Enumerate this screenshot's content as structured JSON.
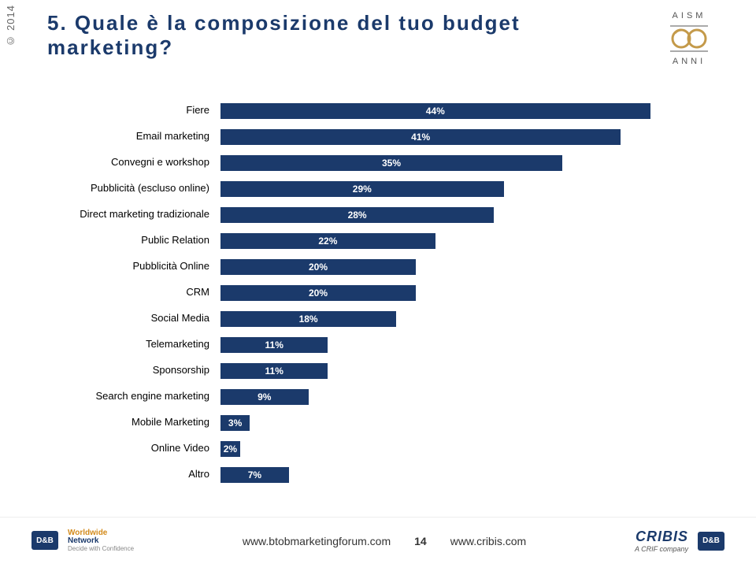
{
  "year_tab": "© 2014",
  "title": "5. Quale è la composizione del tuo budget marketing?",
  "title_color": "#1b3a6b",
  "logo": {
    "top_text": "AISM",
    "bottom_text": "ANNI",
    "circle_color": "#c49a4a",
    "line_color": "#555"
  },
  "chart": {
    "type": "bar-horizontal",
    "max": 50,
    "bar_color": "#1b3a6b",
    "value_text_color": "#ffffff",
    "label_color": "#000000",
    "label_fontsize": 13,
    "value_fontsize": 12,
    "background_color": "#ffffff",
    "rows": [
      {
        "label": "Fiere",
        "value": 44,
        "display": "44%"
      },
      {
        "label": "Email marketing",
        "value": 41,
        "display": "41%"
      },
      {
        "label": "Convegni e workshop",
        "value": 35,
        "display": "35%"
      },
      {
        "label": "Pubblicità (escluso online)",
        "value": 29,
        "display": "29%"
      },
      {
        "label": "Direct marketing tradizionale",
        "value": 28,
        "display": "28%"
      },
      {
        "label": "Public Relation",
        "value": 22,
        "display": "22%"
      },
      {
        "label": "Pubblicità Online",
        "value": 20,
        "display": "20%"
      },
      {
        "label": "CRM",
        "value": 20,
        "display": "20%"
      },
      {
        "label": "Social Media",
        "value": 18,
        "display": "18%"
      },
      {
        "label": "Telemarketing",
        "value": 11,
        "display": "11%"
      },
      {
        "label": "Sponsorship",
        "value": 11,
        "display": "11%"
      },
      {
        "label": "Search engine marketing",
        "value": 9,
        "display": "9%"
      },
      {
        "label": "Mobile Marketing",
        "value": 3,
        "display": "3%"
      },
      {
        "label": "Online Video",
        "value": 2,
        "display": "2%"
      },
      {
        "label": "Altro",
        "value": 7,
        "display": "7%"
      }
    ]
  },
  "footer": {
    "url_left": "www.btobmarketingforum.com",
    "page_number": "14",
    "url_right": "www.cribis.com",
    "dnb_bg": "#1b3a6b",
    "dnb_text": "D&B",
    "wwn_worldwide": "Worldwide",
    "wwn_network": "Network",
    "wwn_tag": "Decide with Confidence",
    "cribis_name": "CRIBIS",
    "cribis_tag": "A CRIF company"
  }
}
